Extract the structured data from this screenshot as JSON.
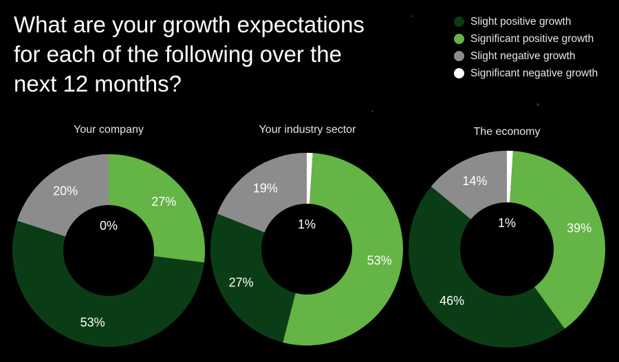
{
  "title_lines": [
    "What are your growth expectations",
    "for each of the following over the",
    "next 12 months?"
  ],
  "legend": [
    {
      "label": "Slight positive growth",
      "color": "#0a3d16"
    },
    {
      "label": "Significant positive growth",
      "color": "#64b446"
    },
    {
      "label": "Slight negative growth",
      "color": "#8c8c8c"
    },
    {
      "label": "Significant negative growth",
      "color": "#ffffff"
    }
  ],
  "chart_data": [
    {
      "type": "pie",
      "title": "Your company",
      "slices": [
        {
          "name": "Significant negative growth",
          "value": 0,
          "label": "0%"
        },
        {
          "name": "Significant positive growth",
          "value": 27,
          "label": "27%"
        },
        {
          "name": "Slight positive growth",
          "value": 53,
          "label": "53%"
        },
        {
          "name": "Slight negative growth",
          "value": 20,
          "label": "20%"
        }
      ]
    },
    {
      "type": "pie",
      "title": "Your industry sector",
      "slices": [
        {
          "name": "Significant negative growth",
          "value": 1,
          "label": "1%"
        },
        {
          "name": "Significant positive growth",
          "value": 53,
          "label": "53%"
        },
        {
          "name": "Slight positive growth",
          "value": 27,
          "label": "27%"
        },
        {
          "name": "Slight negative growth",
          "value": 19,
          "label": "19%"
        }
      ]
    },
    {
      "type": "pie",
      "title": "The economy",
      "slices": [
        {
          "name": "Significant negative growth",
          "value": 1,
          "label": "1%"
        },
        {
          "name": "Significant positive growth",
          "value": 39,
          "label": "39%"
        },
        {
          "name": "Slight positive growth",
          "value": 46,
          "label": "46%"
        },
        {
          "name": "Slight negative growth",
          "value": 14,
          "label": "14%"
        }
      ]
    }
  ]
}
